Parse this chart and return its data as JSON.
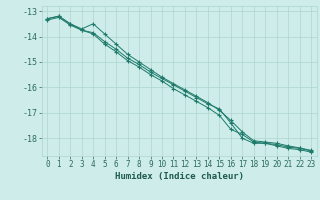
{
  "title": "",
  "xlabel": "Humidex (Indice chaleur)",
  "xlim": [
    -0.5,
    23.5
  ],
  "ylim": [
    -18.7,
    -12.8
  ],
  "yticks": [
    -13,
    -14,
    -15,
    -16,
    -17,
    -18
  ],
  "xticks": [
    0,
    1,
    2,
    3,
    4,
    5,
    6,
    7,
    8,
    9,
    10,
    11,
    12,
    13,
    14,
    15,
    16,
    17,
    18,
    19,
    20,
    21,
    22,
    23
  ],
  "line_color": "#1e7a6a",
  "bg_color": "#cdecea",
  "grid_color": "#aed4d0",
  "line1_x": [
    0,
    1,
    2,
    3,
    4,
    5,
    6,
    7,
    8,
    9,
    10,
    11,
    12,
    13,
    14,
    15,
    16,
    17,
    18,
    19,
    20,
    21,
    22,
    23
  ],
  "line1_y": [
    -13.3,
    -13.2,
    -13.5,
    -13.75,
    -13.85,
    -14.2,
    -14.5,
    -14.85,
    -15.1,
    -15.4,
    -15.65,
    -15.9,
    -16.15,
    -16.4,
    -16.65,
    -16.85,
    -17.4,
    -18.0,
    -18.2,
    -18.2,
    -18.25,
    -18.35,
    -18.4,
    -18.5
  ],
  "line2_x": [
    0,
    1,
    2,
    3,
    4,
    5,
    6,
    7,
    8,
    9,
    10,
    11,
    12,
    13,
    14,
    15,
    16,
    17,
    18,
    19,
    20,
    21,
    22,
    23
  ],
  "line2_y": [
    -13.35,
    -13.25,
    -13.55,
    -13.75,
    -13.9,
    -14.3,
    -14.6,
    -14.95,
    -15.2,
    -15.5,
    -15.75,
    -16.05,
    -16.3,
    -16.55,
    -16.8,
    -17.1,
    -17.65,
    -17.85,
    -18.15,
    -18.2,
    -18.3,
    -18.4,
    -18.45,
    -18.55
  ],
  "line3_x": [
    0,
    1,
    2,
    3,
    4,
    5,
    6,
    7,
    8,
    9,
    10,
    11,
    12,
    13,
    14,
    15,
    16,
    17,
    18,
    19,
    20,
    21,
    22,
    23
  ],
  "line3_y": [
    -13.3,
    -13.2,
    -13.5,
    -13.7,
    -13.5,
    -13.9,
    -14.3,
    -14.7,
    -15.0,
    -15.3,
    -15.6,
    -15.85,
    -16.1,
    -16.35,
    -16.6,
    -16.9,
    -17.3,
    -17.75,
    -18.1,
    -18.15,
    -18.2,
    -18.3,
    -18.38,
    -18.48
  ],
  "tick_color": "#2e6b5e",
  "tick_fontsize": 5.5,
  "xlabel_fontsize": 6.5,
  "xlabel_color": "#1e5a4e"
}
